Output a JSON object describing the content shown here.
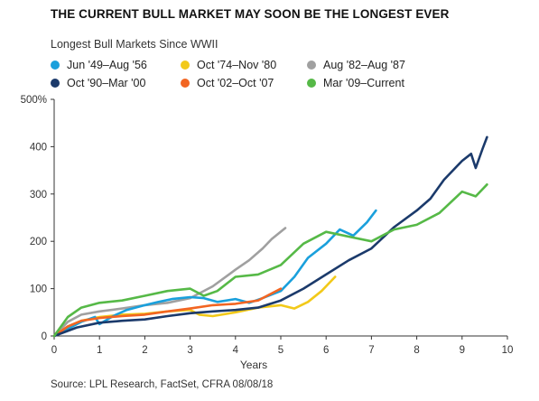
{
  "header": {
    "title": "THE CURRENT BULL MARKET MAY SOON BE THE LONGEST EVER",
    "subtitle": "Longest Bull Markets Since WWII"
  },
  "footer": {
    "source": "Source: LPL Research, FactSet, CFRA   08/08/18"
  },
  "chart_data": {
    "type": "line",
    "title": "THE CURRENT BULL MARKET MAY SOON BE THE LONGEST EVER",
    "subtitle": "Longest Bull Markets Since WWII",
    "xlabel": "Years",
    "ylabel": "",
    "xlim": [
      0,
      10
    ],
    "ylim": [
      0,
      500
    ],
    "x_ticks": [
      "0",
      "1",
      "2",
      "3",
      "4",
      "5",
      "6",
      "7",
      "8",
      "9",
      "10"
    ],
    "y_ticks": [
      "0",
      "100",
      "200",
      "300",
      "400",
      "500%"
    ],
    "grid": false,
    "legend_position": "top",
    "series": [
      {
        "name": "Jun '49–Aug '56",
        "color": "#1aa0dc",
        "x": [
          0,
          0.3,
          0.6,
          0.9,
          1.0,
          1.3,
          1.6,
          2.0,
          2.3,
          2.6,
          3.0,
          3.3,
          3.6,
          4.0,
          4.3,
          4.6,
          5.0,
          5.3,
          5.6,
          6.0,
          6.3,
          6.6,
          6.9,
          7.1
        ],
        "values": [
          0,
          15,
          30,
          40,
          25,
          42,
          55,
          65,
          72,
          78,
          82,
          80,
          72,
          78,
          70,
          80,
          95,
          125,
          165,
          195,
          225,
          212,
          240,
          265
        ]
      },
      {
        "name": "Oct '74–Nov '80",
        "color": "#f2c919",
        "x": [
          0,
          0.3,
          0.6,
          1.0,
          1.5,
          2.0,
          2.5,
          3.0,
          3.2,
          3.5,
          4.0,
          4.5,
          5.0,
          5.3,
          5.6,
          5.9,
          6.2
        ],
        "values": [
          0,
          20,
          32,
          40,
          45,
          47,
          52,
          55,
          45,
          42,
          50,
          60,
          65,
          58,
          72,
          95,
          125
        ]
      },
      {
        "name": "Aug '82–Aug '87",
        "color": "#a0a0a0",
        "x": [
          0,
          0.3,
          0.6,
          1.0,
          1.5,
          2.0,
          2.5,
          3.0,
          3.5,
          4.0,
          4.3,
          4.6,
          4.8,
          5.1
        ],
        "values": [
          0,
          30,
          45,
          52,
          58,
          65,
          70,
          80,
          105,
          140,
          160,
          185,
          205,
          228
        ]
      },
      {
        "name": "Oct '90–Mar '00",
        "color": "#1b3a6b",
        "x": [
          0,
          0.5,
          1.0,
          1.5,
          2.0,
          2.5,
          3.0,
          3.5,
          4.0,
          4.5,
          5.0,
          5.5,
          6.0,
          6.5,
          7.0,
          7.5,
          8.0,
          8.3,
          8.6,
          9.0,
          9.2,
          9.3,
          9.45,
          9.55
        ],
        "values": [
          0,
          18,
          28,
          32,
          35,
          42,
          48,
          52,
          55,
          60,
          75,
          100,
          130,
          160,
          185,
          230,
          265,
          290,
          330,
          370,
          385,
          355,
          395,
          420
        ]
      },
      {
        "name": "Oct '02–Oct '07",
        "color": "#f26522",
        "x": [
          0,
          0.3,
          0.6,
          1.0,
          1.5,
          2.0,
          2.5,
          3.0,
          3.5,
          4.0,
          4.5,
          5.0
        ],
        "values": [
          0,
          20,
          32,
          38,
          42,
          45,
          52,
          58,
          65,
          68,
          75,
          100
        ]
      },
      {
        "name": "Mar '09–Current",
        "color": "#56b947",
        "x": [
          0,
          0.3,
          0.6,
          1.0,
          1.5,
          2.0,
          2.5,
          3.0,
          3.3,
          3.6,
          4.0,
          4.5,
          5.0,
          5.5,
          6.0,
          6.5,
          7.0,
          7.5,
          8.0,
          8.5,
          9.0,
          9.3,
          9.55
        ],
        "values": [
          0,
          40,
          60,
          70,
          75,
          85,
          95,
          100,
          85,
          95,
          125,
          130,
          150,
          195,
          220,
          210,
          200,
          225,
          235,
          260,
          305,
          295,
          320
        ]
      }
    ]
  }
}
